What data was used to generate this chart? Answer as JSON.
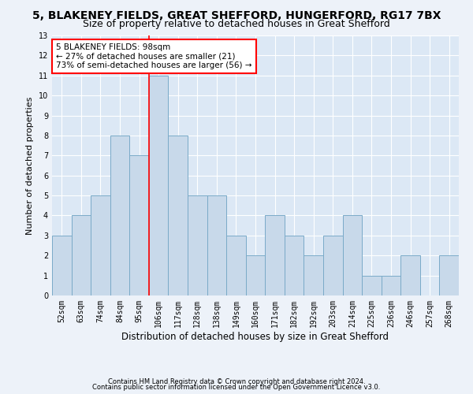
{
  "title": "5, BLAKENEY FIELDS, GREAT SHEFFORD, HUNGERFORD, RG17 7BX",
  "subtitle": "Size of property relative to detached houses in Great Shefford",
  "xlabel": "Distribution of detached houses by size in Great Shefford",
  "ylabel": "Number of detached properties",
  "categories": [
    "52sqm",
    "63sqm",
    "74sqm",
    "84sqm",
    "95sqm",
    "106sqm",
    "117sqm",
    "128sqm",
    "138sqm",
    "149sqm",
    "160sqm",
    "171sqm",
    "182sqm",
    "192sqm",
    "203sqm",
    "214sqm",
    "225sqm",
    "236sqm",
    "246sqm",
    "257sqm",
    "268sqm"
  ],
  "values": [
    3,
    4,
    5,
    8,
    7,
    11,
    8,
    5,
    5,
    3,
    2,
    4,
    3,
    2,
    3,
    4,
    1,
    1,
    2,
    0,
    2
  ],
  "bar_color": "#c8d9ea",
  "bar_edge_color": "#7aaac8",
  "vline_x": 4.5,
  "vline_color": "red",
  "annotation_text": "5 BLAKENEY FIELDS: 98sqm\n← 27% of detached houses are smaller (21)\n73% of semi-detached houses are larger (56) →",
  "annotation_box_color": "white",
  "annotation_box_edge": "red",
  "ylim": [
    0,
    13
  ],
  "yticks": [
    0,
    1,
    2,
    3,
    4,
    5,
    6,
    7,
    8,
    9,
    10,
    11,
    12,
    13
  ],
  "footer1": "Contains HM Land Registry data © Crown copyright and database right 2024.",
  "footer2": "Contains public sector information licensed under the Open Government Licence v3.0.",
  "bg_color": "#edf2f9",
  "plot_bg_color": "#dce8f5",
  "grid_color": "white",
  "title_fontsize": 10,
  "subtitle_fontsize": 9,
  "tick_fontsize": 7,
  "ylabel_fontsize": 8,
  "xlabel_fontsize": 8.5,
  "footer_fontsize": 6,
  "annot_fontsize": 7.5
}
